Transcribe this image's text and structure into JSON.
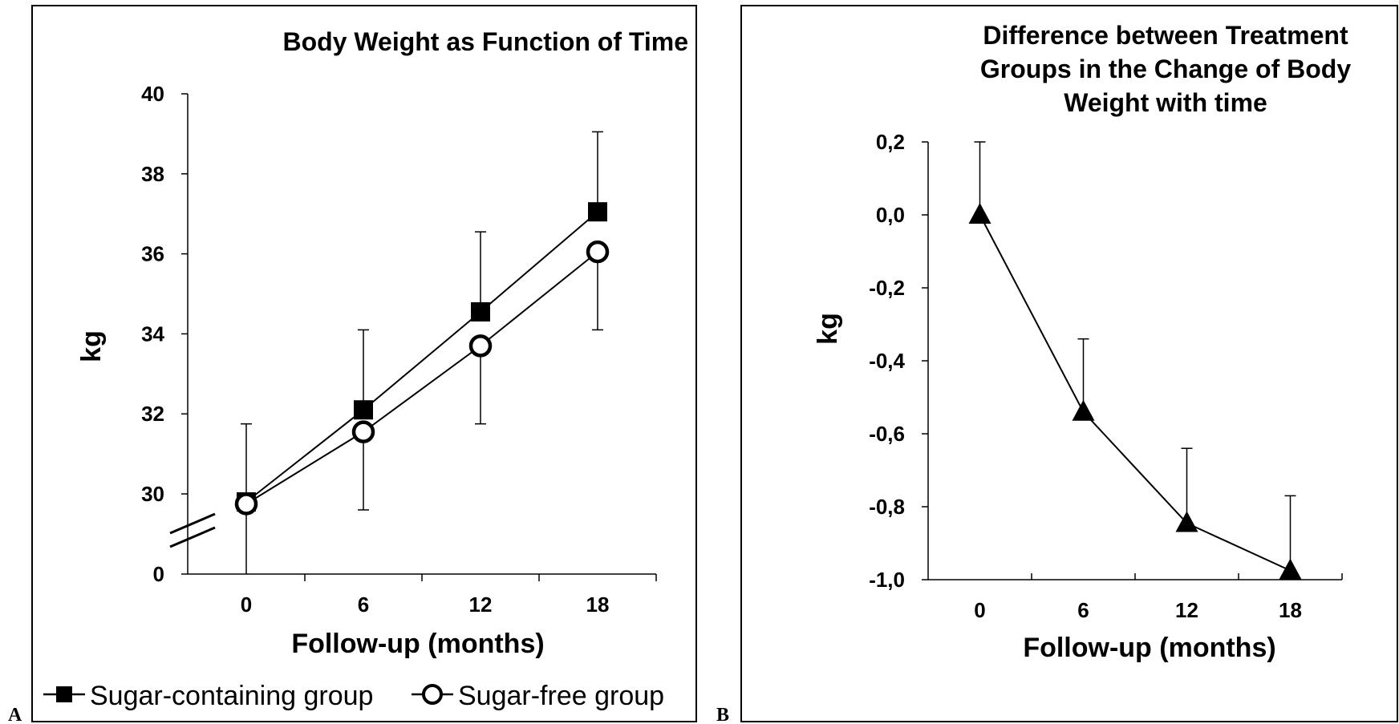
{
  "chart_data": [
    {
      "panel": "A",
      "type": "line",
      "title": "Body Weight as Function of Time",
      "xlabel": "Follow-up (months)",
      "ylabel": "kg",
      "x": [
        0,
        6,
        12,
        18
      ],
      "x_ticks": [
        "0",
        "6",
        "12",
        "18"
      ],
      "y_ticks": [
        "0",
        "30",
        "32",
        "34",
        "36",
        "38",
        "40"
      ],
      "ylim": [
        30,
        40
      ],
      "axis_break": true,
      "series": [
        {
          "name": "Sugar-containing group",
          "marker": "filled-square",
          "values": [
            29.8,
            32.1,
            34.55,
            37.05
          ],
          "error_upper": [
            31.75,
            34.1,
            36.55,
            39.05
          ]
        },
        {
          "name": "Sugar-free group",
          "marker": "open-circle",
          "values": [
            29.75,
            31.55,
            33.7,
            36.05
          ],
          "error_lower": [
            28.0,
            29.6,
            31.75,
            34.1
          ]
        }
      ],
      "legend": "bottom"
    },
    {
      "panel": "B",
      "type": "line",
      "title": "Difference between Treatment Groups in the Change of Body Weight with time",
      "title_lines": [
        "Difference between Treatment",
        "Groups in the Change of Body",
        "Weight with time"
      ],
      "xlabel": "Follow-up (months)",
      "ylabel": "kg",
      "x": [
        0,
        6,
        12,
        18
      ],
      "x_ticks": [
        "0",
        "6",
        "12",
        "18"
      ],
      "y_ticks": [
        "0,2",
        "0,0",
        "-0,2",
        "-0,4",
        "-0,6",
        "-0,8",
        "-1,0"
      ],
      "ylim": [
        -1.0,
        0.2
      ],
      "series": [
        {
          "marker": "filled-triangle",
          "values": [
            0.0,
            -0.54,
            -0.845,
            -0.975
          ],
          "error_upper": [
            0.2,
            -0.34,
            -0.64,
            -0.77
          ]
        }
      ]
    }
  ],
  "panel_letters": {
    "a": "A",
    "b": "B"
  },
  "colors": {
    "line": "#000000",
    "background": "#ffffff"
  }
}
